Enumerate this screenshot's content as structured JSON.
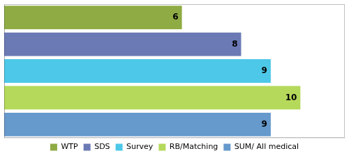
{
  "chart_data": {
    "type": "bar",
    "orientation": "horizontal",
    "categories": [
      "WTP",
      "SDS",
      "Survey",
      "RB/Matching",
      "SUM/ All medical"
    ],
    "values": [
      6,
      8,
      9,
      10,
      9
    ],
    "colors": [
      "#8fac44",
      "#6b7ab5",
      "#4dc8e8",
      "#b5d95a",
      "#6699cc"
    ],
    "xlim": [
      0,
      11.5
    ],
    "xticks": [],
    "tick_labels": false,
    "grid": false,
    "legend": "bottom",
    "data_labels": true
  }
}
